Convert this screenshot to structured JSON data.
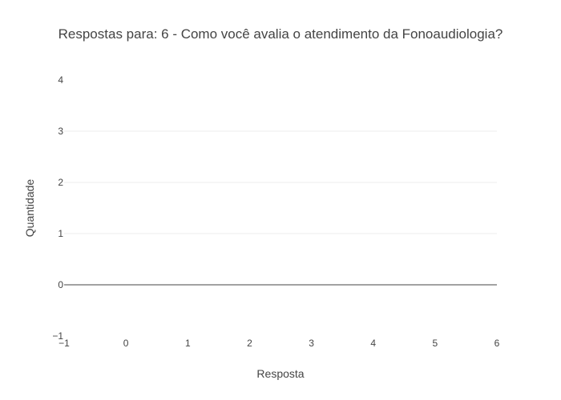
{
  "chart_data": {
    "type": "bar",
    "title": "Respostas para: 6 - Como você avalia o atendimento da Fonoaudiologia?",
    "xlabel": "Resposta",
    "ylabel": "Quantidade",
    "categories": [],
    "values": [],
    "xlim": [
      -1,
      6
    ],
    "ylim": [
      -1,
      4
    ],
    "x_ticks": [
      "−1",
      "0",
      "1",
      "2",
      "3",
      "4",
      "5",
      "6"
    ],
    "x_tick_values": [
      -1,
      0,
      1,
      2,
      3,
      4,
      5,
      6
    ],
    "y_ticks": [
      "−1",
      "0",
      "1",
      "2",
      "3",
      "4"
    ],
    "y_tick_values": [
      -1,
      0,
      1,
      2,
      3,
      4
    ],
    "grid": true,
    "grid_color": "#eeeeee",
    "zero_line_color": "#444444",
    "text_color": "#444444",
    "legend": "none"
  }
}
